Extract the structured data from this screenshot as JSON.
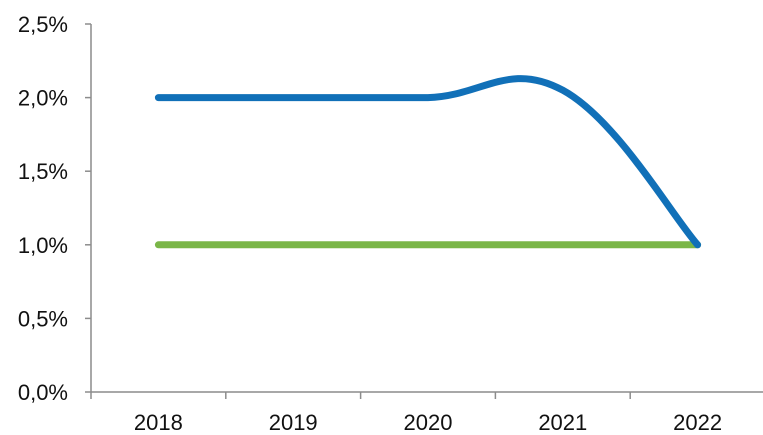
{
  "chart_data": {
    "type": "line",
    "categories": [
      "2018",
      "2019",
      "2020",
      "2021",
      "2022"
    ],
    "y_ticks": [
      "0,0%",
      "0,5%",
      "1,0%",
      "1,5%",
      "2,0%",
      "2,5%"
    ],
    "ylim": [
      0,
      2.5
    ],
    "grid": false,
    "legend": "none",
    "series": [
      {
        "values": [
          2.0,
          2.0,
          2.0,
          2.05,
          1.0
        ],
        "color": "#1170B8"
      },
      {
        "values": [
          1.0,
          1.0,
          1.0,
          1.0,
          1.0
        ],
        "color": "#7AB648"
      }
    ]
  }
}
